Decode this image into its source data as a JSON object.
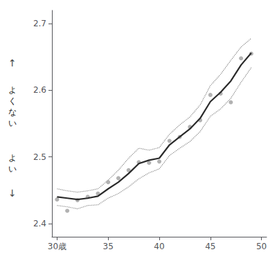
{
  "chart_data": {
    "type": "line",
    "x": [
      30,
      31,
      32,
      33,
      34,
      35,
      36,
      37,
      38,
      39,
      40,
      41,
      42,
      43,
      44,
      45,
      46,
      47,
      48,
      49
    ],
    "series": [
      {
        "type": "line",
        "color": "#888888",
        "line_style": "dotted",
        "values": [
          2.452,
          2.449,
          2.447,
          2.449,
          2.452,
          2.465,
          2.48,
          2.498,
          2.513,
          2.51,
          2.514,
          2.534,
          2.548,
          2.56,
          2.578,
          2.607,
          2.624,
          2.645,
          2.665,
          2.678
        ]
      },
      {
        "type": "line",
        "color": "#888888",
        "line_style": "dotted",
        "values": [
          2.427,
          2.425,
          2.422,
          2.427,
          2.428,
          2.438,
          2.445,
          2.455,
          2.467,
          2.476,
          2.482,
          2.502,
          2.513,
          2.523,
          2.538,
          2.561,
          2.572,
          2.588,
          2.612,
          2.634
        ]
      },
      {
        "type": "line",
        "color": "#2a2a2a",
        "line_style": "solid",
        "values": [
          2.44,
          2.438,
          2.436,
          2.438,
          2.441,
          2.452,
          2.462,
          2.475,
          2.49,
          2.495,
          2.498,
          2.518,
          2.53,
          2.542,
          2.558,
          2.583,
          2.597,
          2.614,
          2.638,
          2.656
        ]
      },
      {
        "type": "scatter",
        "color": "#aaaaaa",
        "marker": "circle",
        "values": [
          2.436,
          2.419,
          2.435,
          2.44,
          2.445,
          2.462,
          2.468,
          2.48,
          2.492,
          2.491,
          2.493,
          2.524,
          2.53,
          2.545,
          2.555,
          2.593,
          2.595,
          2.582,
          2.648,
          2.655
        ]
      }
    ],
    "xlim": [
      29.5,
      50.5
    ],
    "ylim": [
      2.38,
      2.72
    ],
    "xticks": [
      {
        "value": 30,
        "label": "30歳"
      },
      35,
      40,
      45,
      50
    ],
    "yticks": [
      2.4,
      2.5,
      2.6,
      2.7
    ],
    "grid": false,
    "annotations": [
      "↑",
      "よくない",
      "よい",
      "↓"
    ]
  }
}
